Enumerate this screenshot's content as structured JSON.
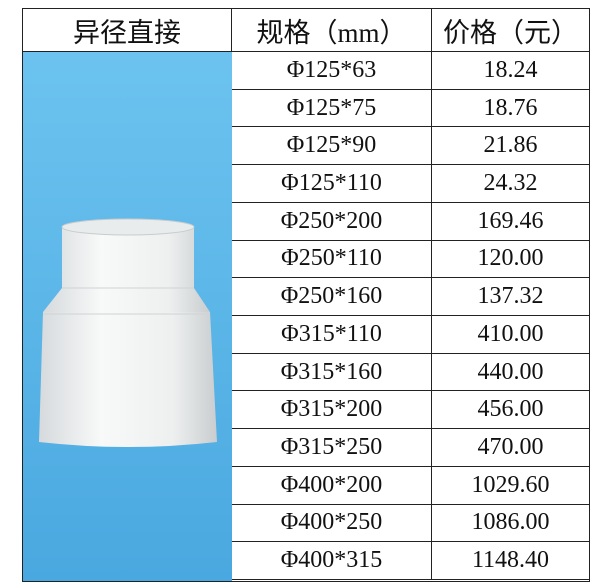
{
  "table": {
    "headers": [
      "异径直接",
      "规格（mm）",
      "价格（元）"
    ],
    "rows": [
      [
        "Φ125*63",
        "18.24"
      ],
      [
        "Φ125*75",
        "18.76"
      ],
      [
        "Φ125*90",
        "21.86"
      ],
      [
        "Φ125*110",
        "24.32"
      ],
      [
        "Φ250*200",
        "169.46"
      ],
      [
        "Φ250*110",
        "120.00"
      ],
      [
        "Φ250*160",
        "137.32"
      ],
      [
        "Φ315*110",
        "410.00"
      ],
      [
        "Φ315*160",
        "440.00"
      ],
      [
        "Φ315*200",
        "456.00"
      ],
      [
        "Φ315*250",
        "470.00"
      ],
      [
        "Φ400*200",
        "1029.60"
      ],
      [
        "Φ400*250",
        "1086.00"
      ],
      [
        "Φ400*315",
        "1148.40"
      ]
    ]
  }
}
